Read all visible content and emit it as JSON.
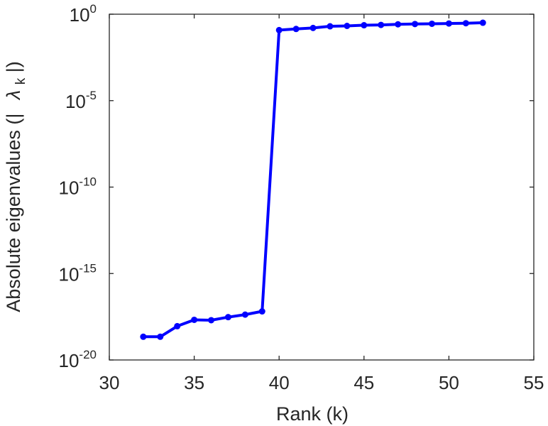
{
  "chart_data": {
    "type": "line",
    "xlabel": "Rank (k)",
    "ylabel": "Absolute eigenvalues (|",
    "ylabel_symbol": "λ",
    "ylabel_subscript": "k",
    "ylabel_tail": "|)",
    "y_scale": "log",
    "xlim": [
      30,
      55
    ],
    "ylim": [
      1e-20,
      1
    ],
    "xticks": [
      "30",
      "35",
      "40",
      "45",
      "50",
      "55"
    ],
    "yticks": [
      {
        "base": "10",
        "exp": "0"
      },
      {
        "base": "10",
        "exp": "-5"
      },
      {
        "base": "10",
        "exp": "-10"
      },
      {
        "base": "10",
        "exp": "-15"
      },
      {
        "base": "10",
        "exp": "-20"
      }
    ],
    "grid": false,
    "color": "#0000ff",
    "series": [
      {
        "x": [
          32,
          33,
          34,
          35,
          36,
          37,
          38,
          39,
          40,
          41,
          42,
          43,
          44,
          45,
          46,
          47,
          48,
          49,
          50,
          51,
          52
        ],
        "y": [
          2.2e-19,
          2.2e-19,
          9e-19,
          2.1e-18,
          2e-18,
          3e-18,
          4.2e-18,
          6.5e-18,
          0.12,
          0.14,
          0.16,
          0.2,
          0.21,
          0.23,
          0.24,
          0.26,
          0.27,
          0.28,
          0.29,
          0.3,
          0.32
        ]
      }
    ]
  }
}
